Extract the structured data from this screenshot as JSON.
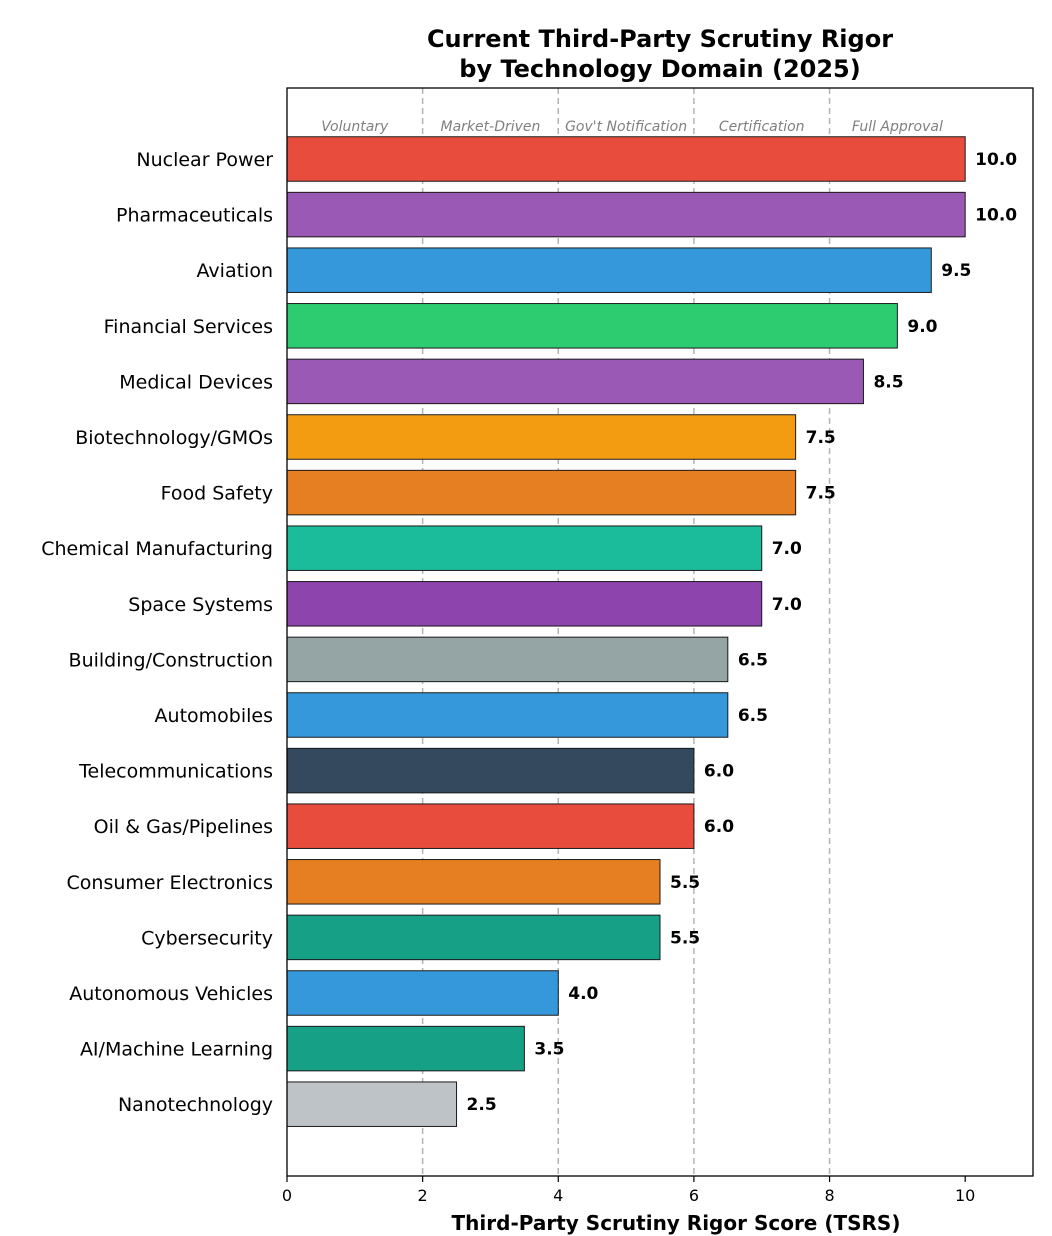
{
  "chart_data": {
    "type": "bar",
    "orientation": "horizontal",
    "title": "Current Third-Party Scrutiny Rigor",
    "subtitle": "by Technology Domain (2025)",
    "xlabel": "Third-Party Scrutiny Rigor Score (TSRS)",
    "ylabel": "",
    "xlim": [
      0,
      11
    ],
    "xticks": [
      0,
      2,
      4,
      6,
      8,
      10
    ],
    "grid": false,
    "categories": [
      "Nuclear Power",
      "Pharmaceuticals",
      "Aviation",
      "Financial Services",
      "Medical Devices",
      "Biotechnology/GMOs",
      "Food Safety",
      "Chemical Manufacturing",
      "Space Systems",
      "Building/Construction",
      "Automobiles",
      "Telecommunications",
      "Oil & Gas/Pipelines",
      "Consumer Electronics",
      "Cybersecurity",
      "Autonomous Vehicles",
      "AI/Machine Learning",
      "Nanotechnology"
    ],
    "values": [
      10.0,
      10.0,
      9.5,
      9.0,
      8.5,
      7.5,
      7.5,
      7.0,
      7.0,
      6.5,
      6.5,
      6.0,
      6.0,
      5.5,
      5.5,
      4.0,
      3.5,
      2.5
    ],
    "value_labels": [
      "10.0",
      "10.0",
      "9.5",
      "9.0",
      "8.5",
      "7.5",
      "7.5",
      "7.0",
      "7.0",
      "6.5",
      "6.5",
      "6.0",
      "6.0",
      "5.5",
      "5.5",
      "4.0",
      "3.5",
      "2.5"
    ],
    "colors": [
      "#e74c3c",
      "#9b59b6",
      "#3498db",
      "#2ecc71",
      "#9b59b6",
      "#f39c12",
      "#e67e22",
      "#1abc9c",
      "#8e44ad",
      "#95a5a6",
      "#3498db",
      "#34495e",
      "#e74c3c",
      "#e67e22",
      "#16a085",
      "#3498db",
      "#16a085",
      "#bdc3c7"
    ],
    "reference_lines": [
      2,
      4,
      6,
      8
    ],
    "regions": [
      {
        "label": "Voluntary",
        "center": 1
      },
      {
        "label": "Market-Driven",
        "center": 3
      },
      {
        "label": "Gov't Notification",
        "center": 5
      },
      {
        "label": "Certification",
        "center": 7
      },
      {
        "label": "Full Approval",
        "center": 9
      }
    ]
  }
}
